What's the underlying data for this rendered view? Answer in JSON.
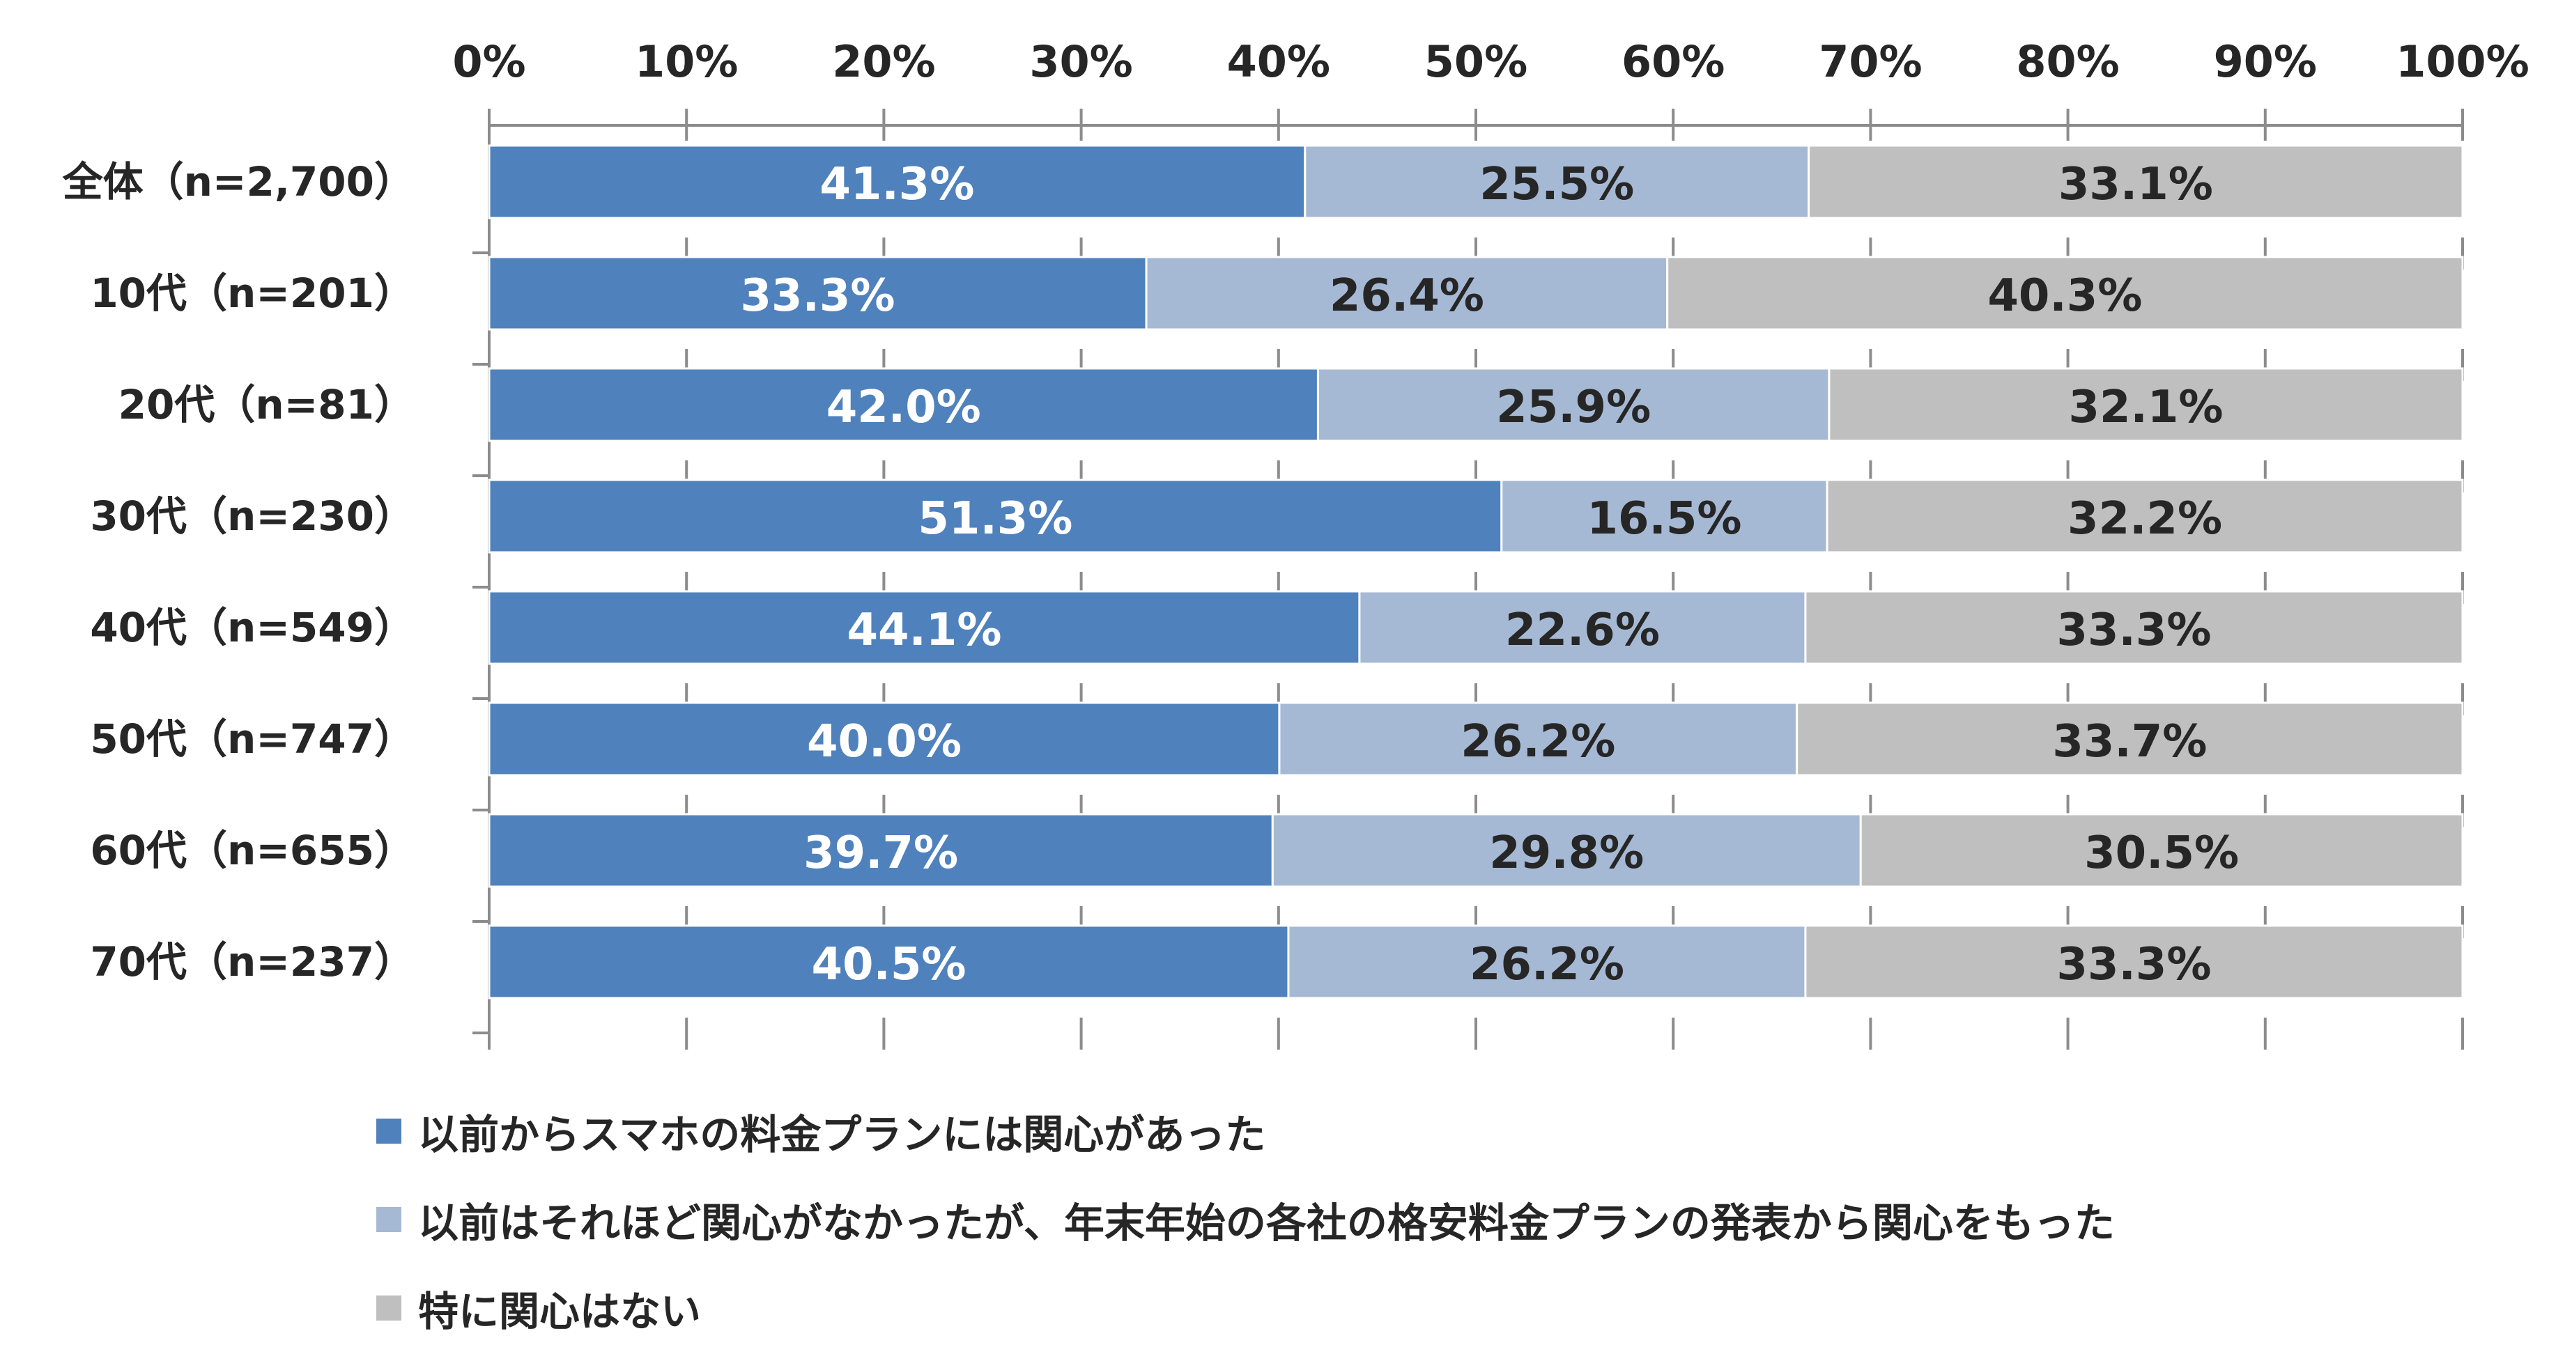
{
  "chart_data": {
    "type": "bar",
    "orientation": "horizontal",
    "stacked": "percent",
    "title": "",
    "xlabel": "",
    "ylabel": "",
    "xlim": [
      0,
      100
    ],
    "x_ticks": [
      "0%",
      "10%",
      "20%",
      "30%",
      "40%",
      "50%",
      "60%",
      "70%",
      "80%",
      "90%",
      "100%"
    ],
    "grid": false,
    "legend_position": "bottom-left",
    "categories": [
      "全体（n=2,700）",
      "10代（n=201）",
      "20代（n=81）",
      "30代（n=230）",
      "40代（n=549）",
      "50代（n=747）",
      "60代（n=655）",
      "70代（n=237）"
    ],
    "series": [
      {
        "name": "以前からスマホの料金プランには関心があった",
        "color": "#4f81bd",
        "label_color": "#ffffff",
        "values": [
          41.3,
          33.3,
          42.0,
          51.3,
          44.1,
          40.0,
          39.7,
          40.5
        ],
        "labels": [
          "41.3%",
          "33.3%",
          "42.0%",
          "51.3%",
          "44.1%",
          "40.0%",
          "39.7%",
          "40.5%"
        ]
      },
      {
        "name": "以前はそれほど関心がなかったが、年末年始の各社の格安料金プランの発表から関心をもった",
        "color": "#a6b9d4",
        "label_color": "#262626",
        "values": [
          25.5,
          26.4,
          25.9,
          16.5,
          22.6,
          26.2,
          29.8,
          26.2
        ],
        "labels": [
          "25.5%",
          "26.4%",
          "25.9%",
          "16.5%",
          "22.6%",
          "26.2%",
          "29.8%",
          "26.2%"
        ]
      },
      {
        "name": "特に関心はない",
        "color": "#bfbfbf",
        "label_color": "#262626",
        "values": [
          33.1,
          40.3,
          32.1,
          32.2,
          33.3,
          33.7,
          30.5,
          33.3
        ],
        "labels": [
          "33.1%",
          "40.3%",
          "32.1%",
          "32.2%",
          "33.3%",
          "33.7%",
          "30.5%",
          "33.3%"
        ]
      }
    ]
  }
}
